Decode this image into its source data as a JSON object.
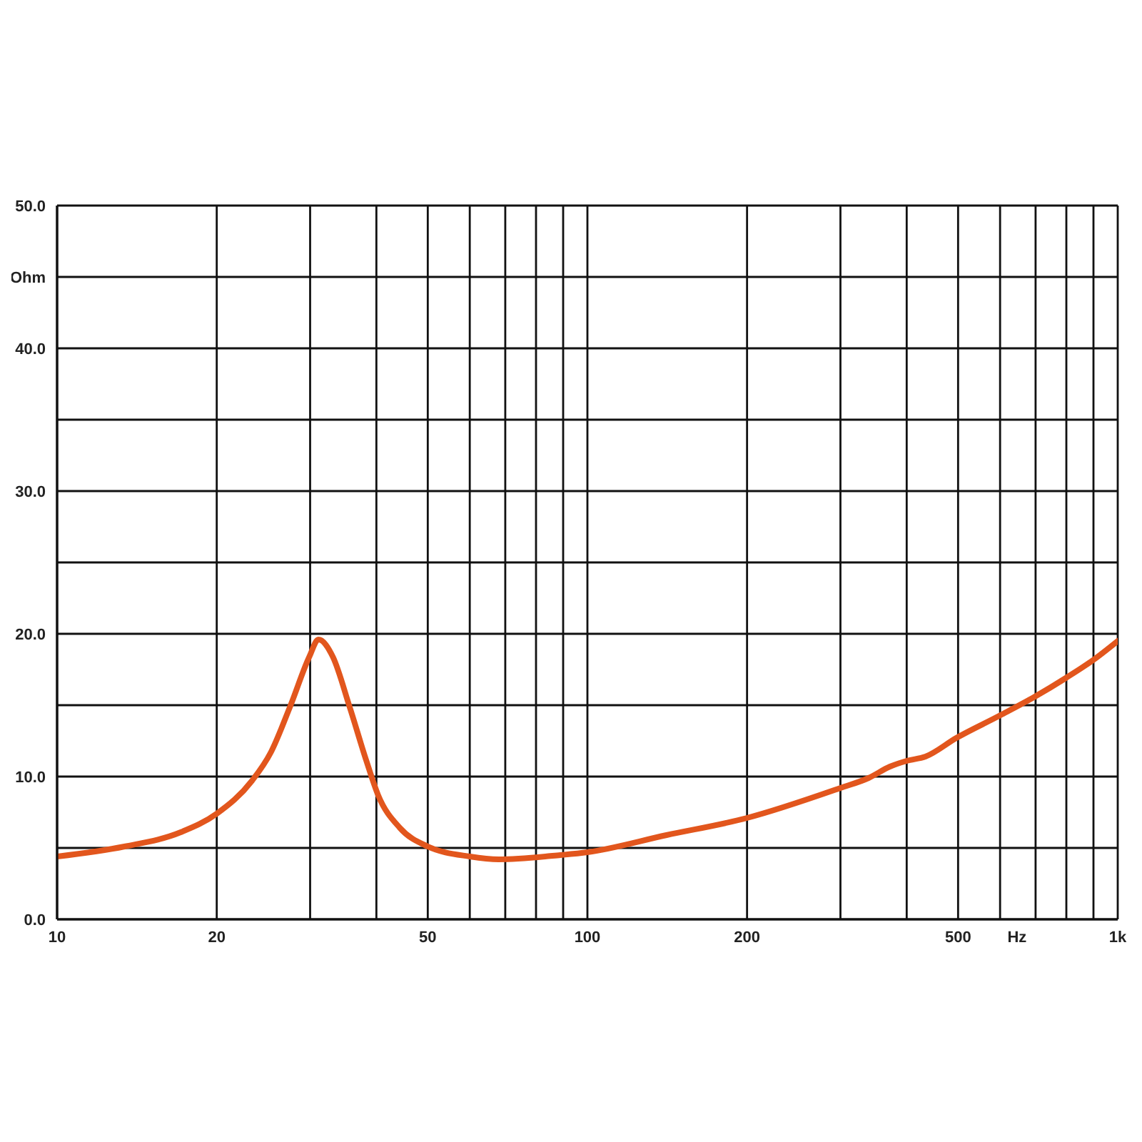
{
  "chart_data": {
    "type": "line",
    "xlabel": "Hz",
    "ylabel": "Ohm",
    "log": "x",
    "x": [
      10,
      13.4,
      17.1,
      20,
      23.3,
      25.3,
      27.5,
      29.9,
      31.1,
      33.1,
      35.6,
      38.3,
      40.3,
      44.3,
      50,
      60,
      68,
      89,
      100,
      141,
      200,
      300,
      339,
      372,
      400,
      434,
      496,
      601,
      698,
      798,
      894,
      1000
    ],
    "series": [
      {
        "color": "#e2561d",
        "values": [
          4.4,
          5.1,
          6.1,
          7.4,
          9.7,
          11.7,
          14.9,
          18.4,
          19.6,
          18.4,
          14.9,
          11.1,
          8.7,
          6.4,
          5.1,
          4.4,
          4.2,
          4.5,
          4.7,
          5.9,
          7.1,
          9.2,
          9.9,
          10.7,
          11.1,
          11.4,
          12.7,
          14.3,
          15.6,
          16.9,
          18.1,
          19.5
        ]
      }
    ],
    "xlim": [
      10,
      1000
    ],
    "xticks": [
      10,
      20,
      {
        "value": 30,
        "label": null
      },
      {
        "value": 40,
        "label": null
      },
      50,
      {
        "value": 60,
        "label": null
      },
      {
        "value": 70,
        "label": null
      },
      {
        "value": 80,
        "label": null
      },
      {
        "value": 90,
        "label": null
      },
      100,
      200,
      {
        "value": 300,
        "label": null
      },
      {
        "value": 400,
        "label": null
      },
      500,
      {
        "value": 600,
        "label": null
      },
      {
        "value": 700,
        "label": null
      },
      {
        "value": 800,
        "label": null
      },
      {
        "value": 900,
        "label": null
      },
      {
        "value": 1000,
        "label": "1k"
      }
    ],
    "ylim": [
      0,
      50
    ],
    "yticks": [
      {
        "value": 0,
        "label": "0.0"
      },
      {
        "value": 5,
        "label": null
      },
      {
        "value": 10,
        "label": "10.0"
      },
      {
        "value": 15,
        "label": null
      },
      {
        "value": 20,
        "label": "20.0"
      },
      {
        "value": 25,
        "label": null
      },
      {
        "value": 30,
        "label": "30.0"
      },
      {
        "value": 35,
        "label": null
      },
      {
        "value": 40,
        "label": "40.0"
      },
      {
        "value": 45,
        "label": null
      },
      {
        "value": 50,
        "label": "50.0"
      }
    ],
    "grid": true,
    "line_style": "solid"
  }
}
